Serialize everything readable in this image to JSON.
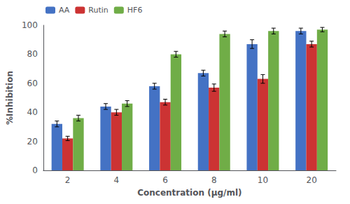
{
  "chart_data": {
    "type": "bar",
    "categories": [
      "2",
      "4",
      "6",
      "8",
      "10",
      "20"
    ],
    "series": [
      {
        "name": "AA",
        "color": "#4472C4",
        "values": [
          32,
          44,
          58,
          67,
          87,
          96
        ],
        "errors": [
          2,
          2,
          2,
          2,
          3,
          2
        ]
      },
      {
        "name": "Rutin",
        "color": "#CC3333",
        "values": [
          22,
          40,
          47,
          57,
          63,
          87
        ],
        "errors": [
          1.5,
          2,
          2,
          2.5,
          3,
          2
        ]
      },
      {
        "name": "HF6",
        "color": "#70AD47",
        "values": [
          36,
          46,
          80,
          94,
          96,
          97
        ],
        "errors": [
          2,
          2,
          2,
          2,
          2,
          1.5
        ]
      }
    ],
    "xlabel": "Concentration (µg/ml)",
    "ylabel": "%Inhibition",
    "ylim": [
      0,
      100
    ],
    "yticks": [
      0,
      20,
      40,
      60,
      80,
      100
    ],
    "grid": false,
    "legend": "upper left"
  }
}
